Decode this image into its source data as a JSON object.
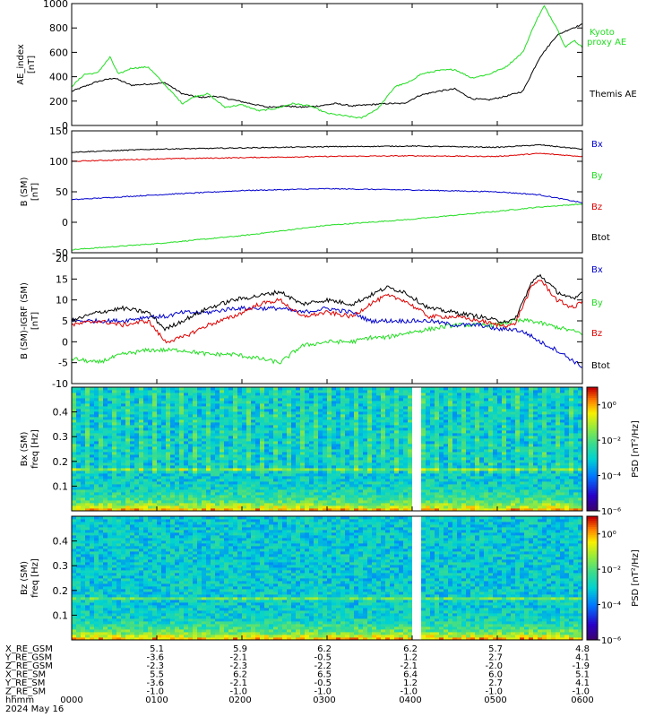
{
  "colors": {
    "black": "#000000",
    "green": "#22dd22",
    "red": "#dd0000",
    "blue": "#0000cc",
    "gap": "#ffffff"
  },
  "chart_data": [
    {
      "type": "line",
      "ylabel": "AE_index [nT]",
      "ylim": [
        0,
        1000
      ],
      "yticks": [
        "0",
        "200",
        "400",
        "600",
        "800",
        "1000"
      ],
      "xlim": [
        0,
        6
      ],
      "legend_placement": "right",
      "series": [
        {
          "name": "Kyoto proxy AE",
          "color": "#22dd22",
          "x": [
            0,
            0.15,
            0.3,
            0.45,
            0.55,
            0.7,
            0.9,
            1.1,
            1.3,
            1.45,
            1.6,
            1.8,
            2.0,
            2.2,
            2.4,
            2.6,
            2.8,
            3.0,
            3.2,
            3.4,
            3.6,
            3.8,
            3.95,
            4.1,
            4.3,
            4.5,
            4.7,
            4.9,
            5.1,
            5.3,
            5.45,
            5.55,
            5.7,
            5.8,
            5.9,
            6.0
          ],
          "y": [
            320,
            420,
            430,
            560,
            420,
            470,
            480,
            330,
            180,
            240,
            260,
            150,
            170,
            120,
            140,
            180,
            160,
            100,
            80,
            60,
            140,
            320,
            350,
            420,
            450,
            460,
            390,
            420,
            480,
            600,
            850,
            980,
            800,
            640,
            700,
            640
          ]
        },
        {
          "name": "Themis AE",
          "color": "#000000",
          "x": [
            0,
            0.3,
            0.5,
            0.7,
            0.9,
            1.1,
            1.3,
            1.5,
            1.7,
            1.9,
            2.1,
            2.3,
            2.5,
            2.7,
            2.9,
            3.1,
            3.3,
            3.5,
            3.7,
            3.9,
            4.1,
            4.3,
            4.5,
            4.7,
            4.9,
            5.1,
            5.3,
            5.5,
            5.7,
            5.85,
            6.0
          ],
          "y": [
            280,
            360,
            390,
            330,
            340,
            350,
            260,
            230,
            240,
            210,
            180,
            150,
            160,
            150,
            160,
            180,
            160,
            170,
            180,
            180,
            250,
            280,
            300,
            220,
            210,
            240,
            280,
            560,
            740,
            790,
            830
          ]
        }
      ]
    },
    {
      "type": "line",
      "ylabel": "B (SM) [nT]",
      "ylim": [
        -50,
        150
      ],
      "yticks": [
        "-50",
        "0",
        "50",
        "100",
        "150"
      ],
      "xlim": [
        0,
        6
      ],
      "legend_placement": "right",
      "series": [
        {
          "name": "Btot",
          "color": "#000000",
          "x": [
            0,
            1,
            2,
            3,
            4,
            5,
            5.5,
            6.0
          ],
          "y": [
            115,
            120,
            122,
            124,
            125,
            123,
            127,
            120
          ]
        },
        {
          "name": "Bz",
          "color": "#dd0000",
          "x": [
            0,
            1,
            2,
            3,
            4,
            5,
            5.5,
            6.0
          ],
          "y": [
            100,
            104,
            106,
            108,
            109,
            108,
            113,
            108
          ]
        },
        {
          "name": "Bx",
          "color": "#0000cc",
          "x": [
            0,
            1,
            2,
            3,
            4,
            5,
            5.5,
            6.0
          ],
          "y": [
            37,
            45,
            52,
            55,
            53,
            50,
            45,
            32
          ]
        },
        {
          "name": "By",
          "color": "#22dd22",
          "x": [
            0,
            1,
            2,
            3,
            4,
            5,
            5.5,
            6.0
          ],
          "y": [
            -45,
            -35,
            -22,
            -5,
            5,
            18,
            25,
            30
          ]
        }
      ]
    },
    {
      "type": "line",
      "ylabel": "B (SM)-IGRF (SM) [nT]",
      "ylim": [
        -10,
        20
      ],
      "yticks": [
        "-10",
        "-5",
        "0",
        "5",
        "10",
        "15",
        "20"
      ],
      "xlim": [
        0,
        6
      ],
      "legend_placement": "right",
      "series": [
        {
          "name": "Btot",
          "color": "#000000",
          "x": [
            0,
            0.3,
            0.6,
            0.9,
            1.1,
            1.3,
            1.6,
            1.9,
            2.2,
            2.45,
            2.7,
            3.0,
            3.3,
            3.5,
            3.7,
            3.9,
            4.2,
            4.5,
            4.8,
            5.0,
            5.2,
            5.4,
            5.5,
            5.7,
            5.9,
            6.0
          ],
          "y": [
            5,
            7,
            8,
            7,
            3,
            5,
            8,
            10,
            11,
            12,
            9,
            10,
            9,
            11,
            13,
            12,
            8,
            7,
            6,
            5,
            5,
            14,
            16,
            12,
            10,
            12
          ]
        },
        {
          "name": "Bz",
          "color": "#dd0000",
          "x": [
            0,
            0.3,
            0.6,
            0.9,
            1.1,
            1.3,
            1.6,
            1.9,
            2.2,
            2.45,
            2.7,
            3.0,
            3.3,
            3.5,
            3.7,
            3.9,
            4.2,
            4.5,
            4.8,
            5.0,
            5.2,
            5.4,
            5.5,
            5.7,
            5.9,
            6.0
          ],
          "y": [
            4,
            5,
            4,
            5,
            0,
            1,
            4,
            6,
            9,
            10,
            6,
            7,
            6,
            9,
            11,
            10,
            6,
            6,
            5,
            4,
            4,
            13,
            15,
            10,
            8,
            10
          ]
        },
        {
          "name": "Bx",
          "color": "#0000cc",
          "x": [
            0,
            0.3,
            0.6,
            0.9,
            1.1,
            1.3,
            1.6,
            1.9,
            2.2,
            2.45,
            2.7,
            3.0,
            3.3,
            3.5,
            3.7,
            3.9,
            4.2,
            4.5,
            4.8,
            5.0,
            5.2,
            5.35,
            5.5,
            5.7,
            5.85,
            6.0
          ],
          "y": [
            5,
            5,
            5,
            6,
            6,
            7,
            7,
            8,
            8,
            8,
            7,
            8,
            7,
            5,
            5,
            5,
            5,
            4,
            4,
            3,
            3,
            2,
            0,
            -2,
            -4,
            -6
          ]
        },
        {
          "name": "By",
          "color": "#22dd22",
          "x": [
            0,
            0.3,
            0.6,
            0.9,
            1.1,
            1.3,
            1.6,
            1.9,
            2.2,
            2.45,
            2.7,
            3.0,
            3.3,
            3.5,
            3.7,
            3.9,
            4.2,
            4.5,
            4.8,
            5.0,
            5.2,
            5.4,
            5.6,
            5.8,
            6.0
          ],
          "y": [
            -4,
            -5,
            -3,
            -2,
            -2,
            -2,
            -3,
            -3,
            -4,
            -5,
            -1,
            0,
            0,
            1,
            1,
            2,
            3,
            4,
            4,
            4,
            5,
            5,
            4,
            3,
            2
          ]
        }
      ]
    },
    {
      "type": "heatmap",
      "ylabel": "Bx (SM) freq [Hz]",
      "ylim": [
        0,
        0.5
      ],
      "yticks": [
        "0.1",
        "0.2",
        "0.3",
        "0.4"
      ],
      "xlim": [
        0,
        6
      ],
      "data_gap": [
        4.0,
        4.1
      ],
      "colorbar": {
        "label": "PSD [nT²/Hz]",
        "scale": "log",
        "range": [
          1e-06,
          10
        ],
        "ticks": [
          "10⁰",
          "10⁻²",
          "10⁻⁴",
          "10⁻⁶"
        ]
      }
    },
    {
      "type": "heatmap",
      "ylabel": "Bz (SM) freq [Hz]",
      "ylim": [
        0,
        0.5
      ],
      "yticks": [
        "0.1",
        "0.2",
        "0.3",
        "0.4"
      ],
      "xlim": [
        0,
        6
      ],
      "data_gap": [
        4.0,
        4.1
      ],
      "colorbar": {
        "label": "PSD [nT²/Hz]",
        "scale": "log",
        "range": [
          1e-06,
          10
        ],
        "ticks": [
          "10⁰",
          "10⁻²",
          "10⁻⁴",
          "10⁻⁶"
        ]
      }
    }
  ],
  "panels": {
    "ae": {
      "ylabel_1": "AE_index",
      "ylabel_2": "[nT]",
      "legend": [
        "Kyoto",
        "proxy AE",
        "Themis AE"
      ]
    },
    "bsm": {
      "ylabel_1": "B (SM)",
      "ylabel_2": "[nT]",
      "legend": [
        "Bx",
        "By",
        "Bz",
        "Btot"
      ]
    },
    "bdiff": {
      "ylabel_1": "B (SM)-IGRF (SM)",
      "ylabel_2": "[nT]",
      "legend": [
        "Bx",
        "By",
        "Bz",
        "Btot"
      ]
    },
    "spec_bx": {
      "ylabel_1": "Bx (SM)",
      "ylabel_2": "freq [Hz]",
      "cb_label": "PSD [nT²/Hz]"
    },
    "spec_bz": {
      "ylabel_1": "Bz (SM)",
      "ylabel_2": "freq [Hz]",
      "cb_label": "PSD [nT²/Hz]"
    }
  },
  "ephemeris": {
    "rows": [
      {
        "label": "X_RE_GSM",
        "values": [
          "5.1",
          "5.9",
          "6.2",
          "6.2",
          "5.7",
          "4.8"
        ]
      },
      {
        "label": "Y_RE_GSM",
        "values": [
          "-3.6",
          "-2.1",
          "-0.5",
          "1.2",
          "2.7",
          "4.1"
        ]
      },
      {
        "label": "Z_RE_GSM",
        "values": [
          "-2.3",
          "-2.3",
          "-2.2",
          "-2.1",
          "-2.0",
          "-1.9"
        ]
      },
      {
        "label": "X_RE_SM",
        "values": [
          "5.5",
          "6.2",
          "6.5",
          "6.4",
          "6.0",
          "5.1"
        ]
      },
      {
        "label": "Y_RE_SM",
        "values": [
          "-3.6",
          "-2.1",
          "-0.5",
          "1.2",
          "2.7",
          "4.1"
        ]
      },
      {
        "label": "Z_RE_SM",
        "values": [
          "-1.0",
          "-1.0",
          "-1.0",
          "-1.0",
          "-1.0",
          "-1.0"
        ]
      }
    ],
    "time_label": "hhmm",
    "time_first": "0000",
    "times": [
      "0100",
      "0200",
      "0300",
      "0400",
      "0500",
      "0600"
    ],
    "date": "2024 May 16"
  }
}
